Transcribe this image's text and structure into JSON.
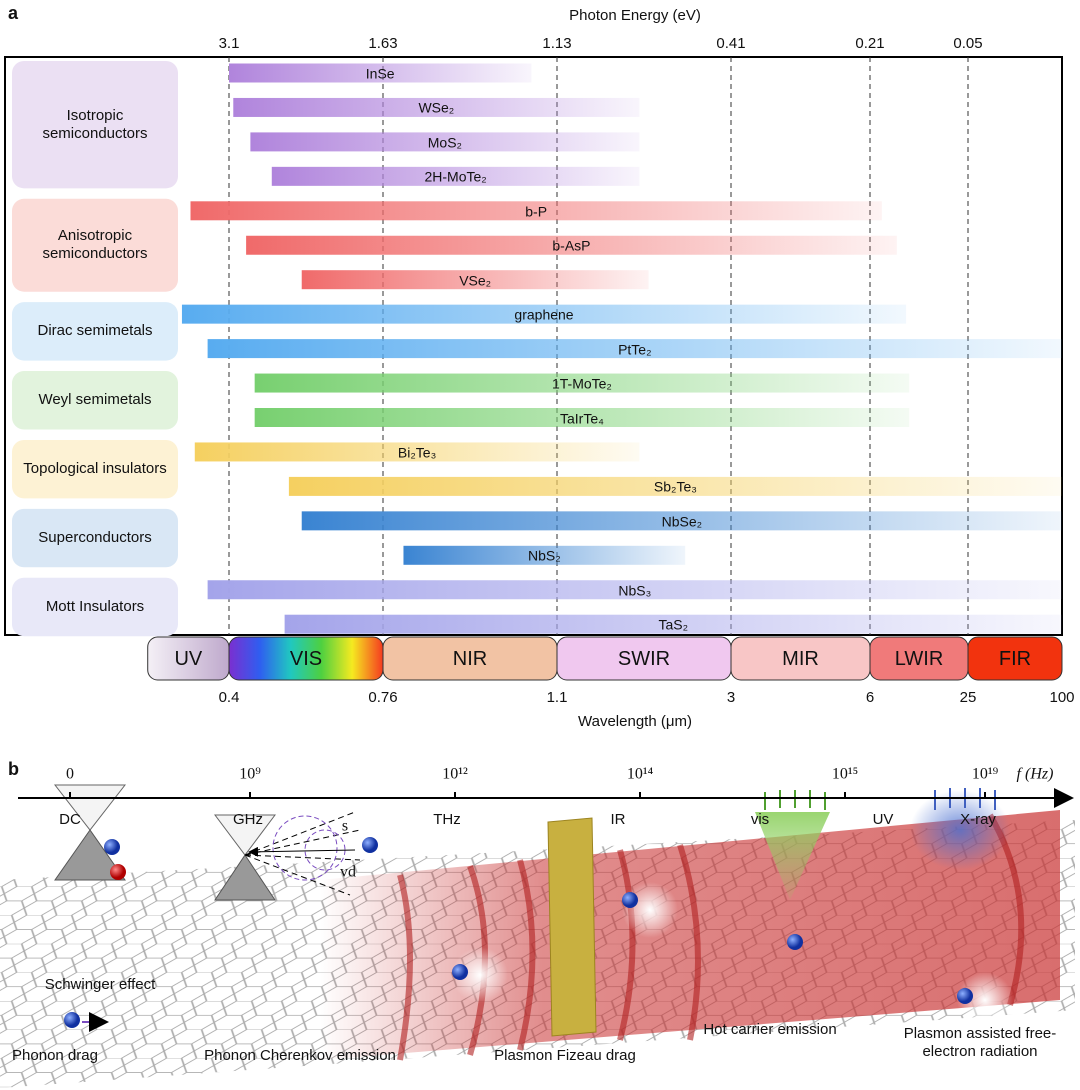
{
  "panel_a": {
    "label": "a",
    "top_axis_title": "Photon Energy (eV)",
    "top_ticks": [
      3.1,
      1.63,
      1.13,
      0.41,
      0.21,
      0.05
    ],
    "xlabel": "Wavelength (μm)",
    "xticks": [
      0.4,
      0.76,
      1.1,
      3,
      6,
      25,
      100
    ],
    "bands": [
      {
        "name": "UV",
        "start": 0.21,
        "end": 0.4
      },
      {
        "name": "VIS",
        "start": 0.4,
        "end": 0.76
      },
      {
        "name": "NIR",
        "start": 0.76,
        "end": 1.1
      },
      {
        "name": "SWIR",
        "start": 1.1,
        "end": 3
      },
      {
        "name": "MIR",
        "start": 3,
        "end": 6
      },
      {
        "name": "LWIR",
        "start": 6,
        "end": 25
      },
      {
        "name": "FIR",
        "start": 25,
        "end": 100
      }
    ],
    "groups": [
      {
        "name": "Isotropic semiconductors",
        "color": "#ebe0f3",
        "bar_color": "#b084dc",
        "materials": [
          {
            "name": "InSe",
            "start": 0.4,
            "end": 1.05
          },
          {
            "name": "WSe₂",
            "start": 0.41,
            "end": 2.0
          },
          {
            "name": "MoS₂",
            "start": 0.45,
            "end": 2.0
          },
          {
            "name": "2H-MoTe₂",
            "start": 0.5,
            "end": 2.0
          }
        ]
      },
      {
        "name": "Anisotropic semiconductors",
        "color": "#fbdcd8",
        "bar_color": "#f06a6a",
        "materials": [
          {
            "name": "b-P",
            "start": 0.31,
            "end": 8.3
          },
          {
            "name": "b-AsP",
            "start": 0.44,
            "end": 11.2
          },
          {
            "name": "VSe₂",
            "start": 0.57,
            "end": 2.1
          }
        ]
      },
      {
        "name": "Dirac semimetals",
        "color": "#dcedfa",
        "bar_color": "#58acf0",
        "materials": [
          {
            "name": "graphene",
            "start": 0.29,
            "end": 13
          },
          {
            "name": "PtTe₂",
            "start": 0.35,
            "end": 100
          }
        ]
      },
      {
        "name": "Weyl semimetals",
        "color": "#e2f3dd",
        "bar_color": "#78d070",
        "materials": [
          {
            "name": "1T-MoTe₂",
            "start": 0.46,
            "end": 13.6
          },
          {
            "name": "TaIrTe₄",
            "start": 0.46,
            "end": 13.6
          }
        ]
      },
      {
        "name": "Topological insulators",
        "color": "#fdf2d4",
        "bar_color": "#f5d060",
        "materials": [
          {
            "name": "Bi₂Te₃",
            "start": 0.32,
            "end": 2.0
          },
          {
            "name": "Sb₂Te₃",
            "start": 0.54,
            "end": 100
          }
        ]
      },
      {
        "name": "Superconductors",
        "color": "#d9e7f5",
        "bar_color": "#3a84d2",
        "materials": [
          {
            "name": "NbSe₂",
            "start": 0.57,
            "end": 100
          },
          {
            "name": "NbS₂",
            "start": 0.8,
            "end": 2.5
          }
        ]
      },
      {
        "name": "Mott Insulators",
        "color": "#e8e8f8",
        "bar_color": "#a4a4ea",
        "materials": [
          {
            "name": "NbS₃",
            "start": 0.35,
            "end": 100
          },
          {
            "name": "TaS₂",
            "start": 0.53,
            "end": 100
          }
        ]
      }
    ]
  },
  "panel_b": {
    "label": "b",
    "frequency_ticks": [
      "0",
      "10⁹",
      "10¹²",
      "10¹⁴",
      "10¹⁵",
      "10¹⁹"
    ],
    "axis_unit": "f (Hz)",
    "regions": [
      "DC",
      "GHz",
      "THz",
      "IR",
      "vis",
      "UV",
      "X-ray"
    ],
    "cherenkov_labels": [
      "s",
      "vd"
    ],
    "effects": [
      "Schwinger effect",
      "Phonon drag",
      "Phonon Cherenkov emission",
      "Plasmon Fizeau drag",
      "Hot carrier emission",
      "Plasmon assisted free-electron radiation"
    ]
  }
}
